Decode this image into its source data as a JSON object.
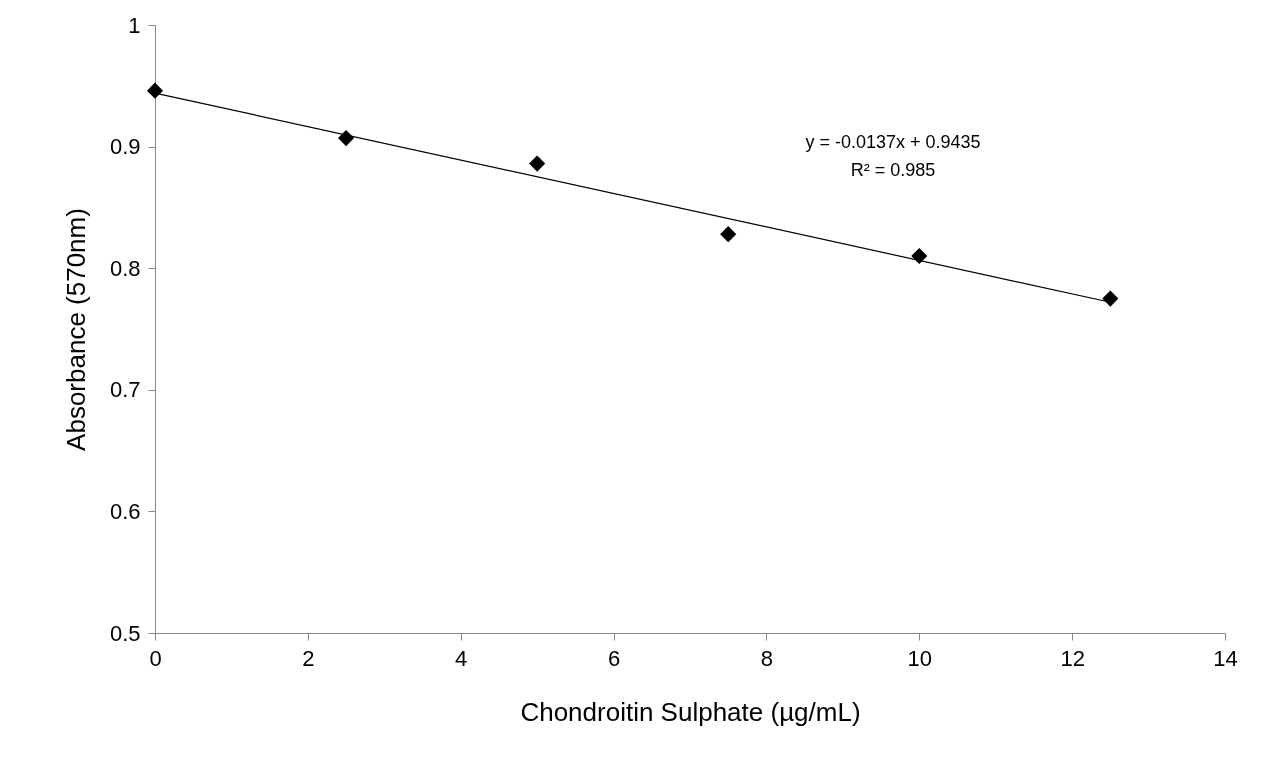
{
  "chart_data": {
    "type": "scatter",
    "xlabel": "Chondroitin Sulphate (µg/mL)",
    "ylabel": "Absorbance (570nm)",
    "x": [
      0,
      2.5,
      5,
      7.5,
      10,
      12.5
    ],
    "series": [
      {
        "color": "#000000",
        "marker": "diamond",
        "values": [
          0.946,
          0.907,
          0.886,
          0.828,
          0.81,
          0.775
        ]
      },
      {
        "type": "line",
        "color": "#000000",
        "marker": "none",
        "x": [
          0,
          12.5
        ],
        "values": [
          0.944,
          0.772
        ]
      }
    ],
    "grid": false,
    "xlim": [
      0,
      14
    ],
    "xticks": [
      0,
      2,
      4,
      6,
      8,
      10,
      12,
      14
    ],
    "ylim": [
      0.5,
      1
    ],
    "yticks": [
      0.5,
      0.6,
      0.7,
      0.8,
      0.9,
      1
    ],
    "annotations": [
      "y = -0.0137x + 0.9435",
      "R² = 0.985"
    ]
  }
}
